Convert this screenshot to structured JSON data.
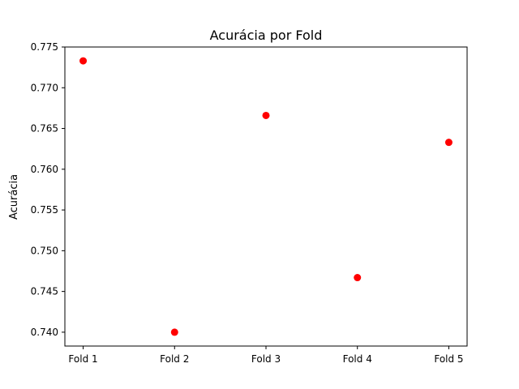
{
  "chart_data": {
    "type": "scatter",
    "title": "Acurácia por Fold",
    "xlabel": "",
    "ylabel": "Acurácia",
    "categories": [
      "Fold 1",
      "Fold 2",
      "Fold 3",
      "Fold 4",
      "Fold 5"
    ],
    "values": [
      0.7733,
      0.74,
      0.7666,
      0.7467,
      0.7633
    ],
    "ylim": [
      0.7383,
      0.775
    ],
    "yticks": [
      "0.740",
      "0.745",
      "0.750",
      "0.755",
      "0.760",
      "0.765",
      "0.770",
      "0.775"
    ],
    "grid": false,
    "marker_color": "#ff0000"
  }
}
